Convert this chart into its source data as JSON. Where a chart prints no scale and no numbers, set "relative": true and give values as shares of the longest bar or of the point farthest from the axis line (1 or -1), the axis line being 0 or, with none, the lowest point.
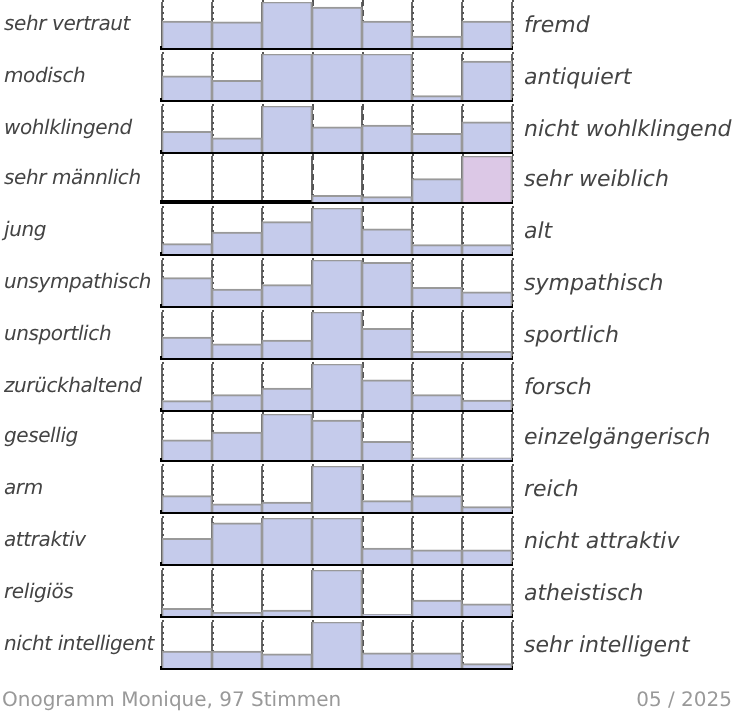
{
  "chart_data": [
    {
      "type": "bar",
      "ylabel": "sehr vertraut",
      "y2label": "fremd",
      "categories": [
        null,
        null,
        null,
        null,
        null,
        null,
        null
      ],
      "relative": true,
      "color": "#c5cbeb",
      "grid": "x",
      "values": [
        0.58,
        0.56,
        1,
        0.88,
        0.58,
        0.25,
        0.58
      ]
    },
    {
      "type": "bar",
      "ylabel": "modisch",
      "y2label": "antiquiert",
      "categories": [
        null,
        null,
        null,
        null,
        null,
        null,
        null
      ],
      "relative": true,
      "color": "#c5cbeb",
      "grid": "x",
      "values": [
        0.52,
        0.42,
        1,
        1,
        1,
        0.09,
        0.84
      ]
    },
    {
      "type": "bar",
      "ylabel": "wohlklingend",
      "y2label": "nicht wohlklingend",
      "categories": [
        null,
        null,
        null,
        null,
        null,
        null,
        null
      ],
      "relative": true,
      "color": "#c5cbeb",
      "grid": "x",
      "values": [
        0.44,
        0.3,
        1,
        0.54,
        0.58,
        0.4,
        0.65
      ]
    },
    {
      "type": "bar",
      "ylabel": "sehr männlich",
      "y2label": "sehr weiblich",
      "categories": [
        null,
        null,
        null,
        null,
        null,
        null,
        null
      ],
      "relative": true,
      "colors": [
        "#c5cbeb",
        "#c5cbeb",
        "#c5cbeb",
        "#c5cbeb",
        "#c5cbeb",
        "#c5cbeb",
        "#dcc8e6"
      ],
      "grid": "x",
      "values": [
        0,
        0,
        0,
        0.14,
        0.11,
        0.5,
        1
      ]
    },
    {
      "type": "bar",
      "ylabel": "jung",
      "y2label": "alt",
      "categories": [
        null,
        null,
        null,
        null,
        null,
        null,
        null
      ],
      "relative": true,
      "color": "#c5cbeb",
      "grid": "x",
      "values": [
        0.22,
        0.47,
        0.7,
        1,
        0.54,
        0.2,
        0.2
      ]
    },
    {
      "type": "bar",
      "ylabel": "unsympathisch",
      "y2label": "sympathisch",
      "categories": [
        null,
        null,
        null,
        null,
        null,
        null,
        null
      ],
      "relative": true,
      "color": "#c5cbeb",
      "grid": "x",
      "values": [
        0.61,
        0.36,
        0.46,
        1,
        0.94,
        0.4,
        0.3
      ]
    },
    {
      "type": "bar",
      "ylabel": "unsportlich",
      "y2label": "sportlich",
      "categories": [
        null,
        null,
        null,
        null,
        null,
        null,
        null
      ],
      "relative": true,
      "color": "#c5cbeb",
      "grid": "x",
      "values": [
        0.45,
        0.3,
        0.38,
        1,
        0.64,
        0.14,
        0.14
      ]
    },
    {
      "type": "bar",
      "ylabel": "zurückhaltend",
      "y2label": "forsch",
      "categories": [
        null,
        null,
        null,
        null,
        null,
        null,
        null
      ],
      "relative": true,
      "color": "#c5cbeb",
      "grid": "x",
      "values": [
        0.2,
        0.33,
        0.47,
        1,
        0.65,
        0.33,
        0.21
      ]
    },
    {
      "type": "bar",
      "ylabel": "gesellig",
      "y2label": "einzelgängerisch",
      "categories": [
        null,
        null,
        null,
        null,
        null,
        null,
        null
      ],
      "relative": true,
      "color": "#c5cbeb",
      "grid": "x",
      "values": [
        0.43,
        0.6,
        1,
        0.86,
        0.4,
        0.04,
        0.04
      ]
    },
    {
      "type": "bar",
      "ylabel": "arm",
      "y2label": "reich",
      "categories": [
        null,
        null,
        null,
        null,
        null,
        null,
        null
      ],
      "relative": true,
      "color": "#c5cbeb",
      "grid": "x",
      "values": [
        0.35,
        0.17,
        0.21,
        1,
        0.24,
        0.35,
        0.11
      ]
    },
    {
      "type": "bar",
      "ylabel": "attraktiv",
      "y2label": "nicht attraktiv",
      "categories": [
        null,
        null,
        null,
        null,
        null,
        null,
        null
      ],
      "relative": true,
      "color": "#c5cbeb",
      "grid": "x",
      "values": [
        0.55,
        0.89,
        1,
        1,
        0.34,
        0.3,
        0.3
      ]
    },
    {
      "type": "bar",
      "ylabel": "religiös",
      "y2label": "atheistisch",
      "categories": [
        null,
        null,
        null,
        null,
        null,
        null,
        null
      ],
      "relative": true,
      "color": "#c5cbeb",
      "grid": "x",
      "values": [
        0.16,
        0.07,
        0.12,
        1,
        0.03,
        0.34,
        0.26
      ]
    },
    {
      "type": "bar",
      "ylabel": "nicht intelligent",
      "y2label": "sehr intelligent",
      "categories": [
        null,
        null,
        null,
        null,
        null,
        null,
        null
      ],
      "relative": true,
      "color": "#c5cbeb",
      "grid": "x",
      "values": [
        0.36,
        0.36,
        0.3,
        1,
        0.32,
        0.32,
        0.09
      ],
      "annotations": [
        "Onogramm Monique, 97 Stimmen",
        "05 / 2025"
      ]
    }
  ]
}
